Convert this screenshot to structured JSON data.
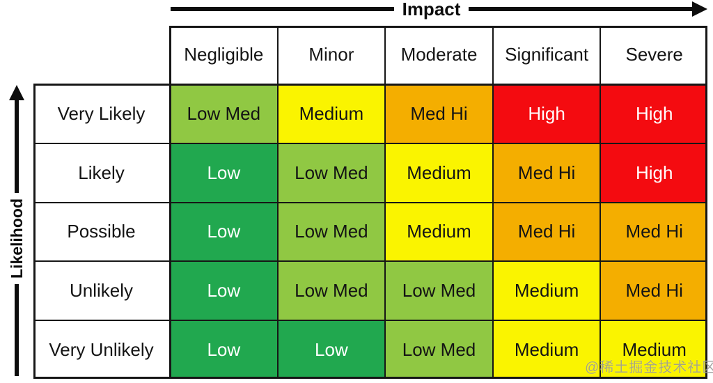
{
  "chart_data": {
    "type": "heatmap",
    "x_axis_label": "Impact",
    "y_axis_label": "Likelihood",
    "x_categories": [
      "Negligible",
      "Minor",
      "Moderate",
      "Significant",
      "Severe"
    ],
    "y_categories": [
      "Very Likely",
      "Likely",
      "Possible",
      "Unlikely",
      "Very Unlikely"
    ],
    "values": [
      [
        "Low Med",
        "Medium",
        "Med Hi",
        "High",
        "High"
      ],
      [
        "Low",
        "Low Med",
        "Medium",
        "Med Hi",
        "High"
      ],
      [
        "Low",
        "Low Med",
        "Medium",
        "Med Hi",
        "Med Hi"
      ],
      [
        "Low",
        "Low Med",
        "Low Med",
        "Medium",
        "Med Hi"
      ],
      [
        "Low",
        "Low",
        "Low Med",
        "Medium",
        "Medium"
      ]
    ],
    "legend_position": "none",
    "grid": true
  },
  "level_styles": {
    "Low": {
      "bg": "#21A84F",
      "text": "#FFFFFF"
    },
    "Low Med": {
      "bg": "#90C843",
      "text": "#141414"
    },
    "Medium": {
      "bg": "#FAF400",
      "text": "#141414"
    },
    "Med Hi": {
      "bg": "#F4AE00",
      "text": "#141414"
    },
    "High": {
      "bg": "#F40B10",
      "text": "#FFFFFF"
    }
  },
  "watermark": {
    "text": "@稀土掘金技术社区"
  }
}
